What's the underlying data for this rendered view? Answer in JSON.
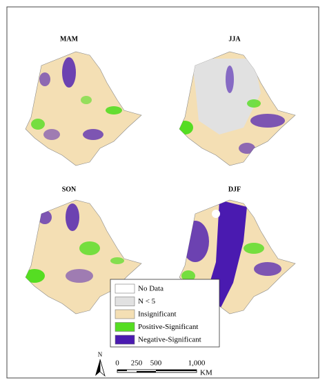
{
  "panels": [
    {
      "title": "MAM"
    },
    {
      "title": "JJA"
    },
    {
      "title": "SON"
    },
    {
      "title": "DJF"
    }
  ],
  "legend": {
    "items": [
      {
        "label": "No Data",
        "color": "#ffffff"
      },
      {
        "label": "N < 5",
        "color": "#e1e1e1"
      },
      {
        "label": "Insignificant",
        "color": "#f4dfb4"
      },
      {
        "label": "Positive-Significant",
        "color": "#55dd22"
      },
      {
        "label": "Negative-Significant",
        "color": "#4a1ab0"
      }
    ]
  },
  "north_arrow": {
    "label": "N"
  },
  "scale_bar": {
    "labels": [
      "0",
      "250",
      "500",
      "1,000"
    ],
    "unit": "KM"
  }
}
